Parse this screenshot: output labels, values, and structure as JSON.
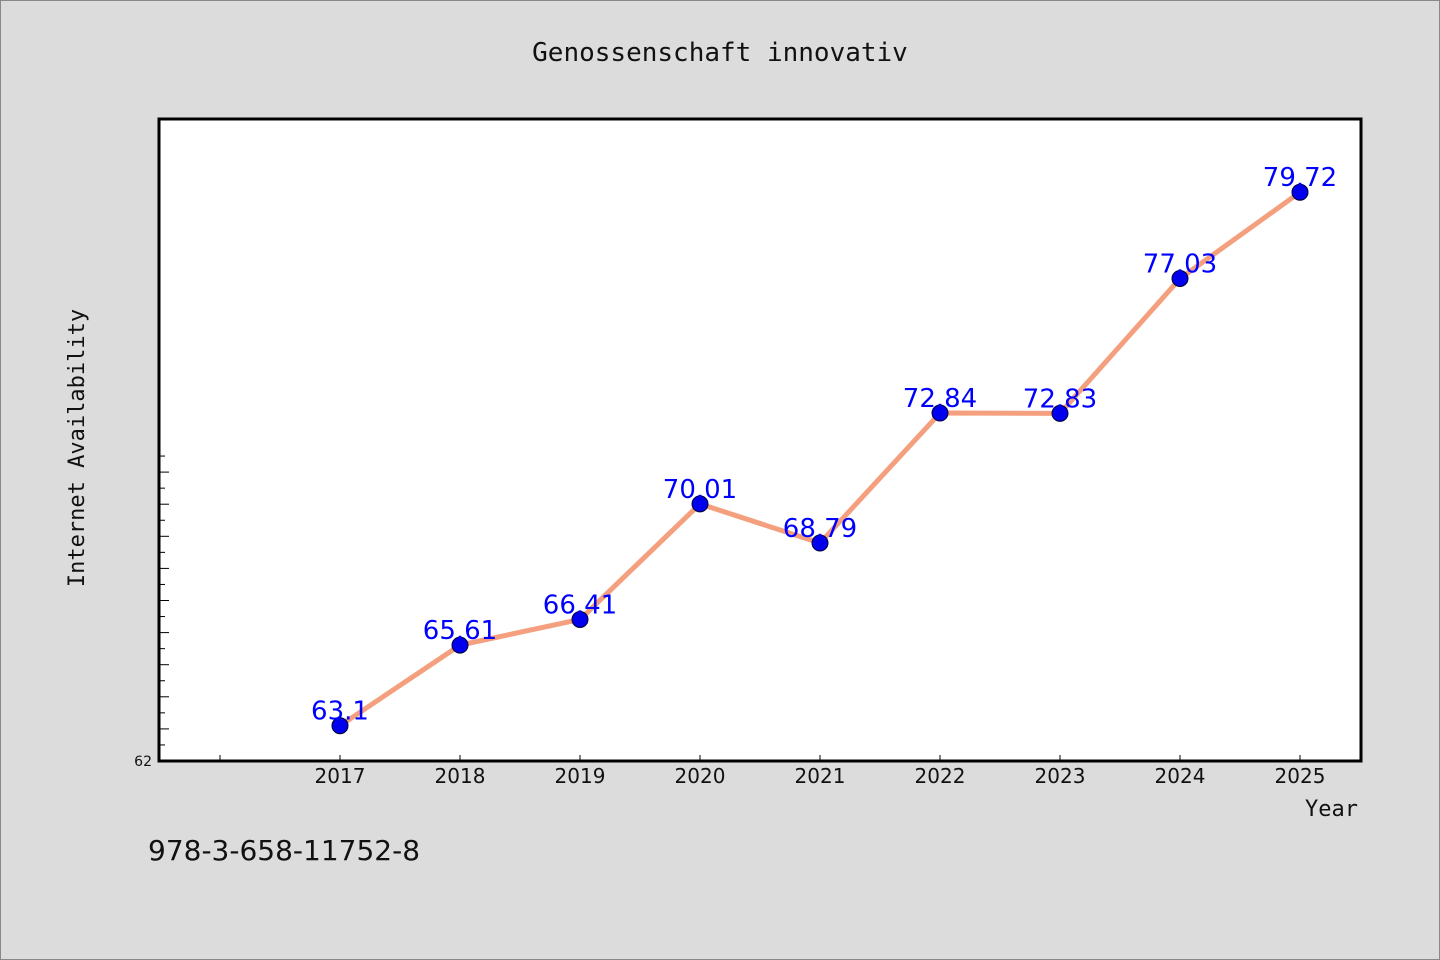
{
  "chart_data": {
    "type": "line",
    "title": "Genossenschaft innovativ",
    "xlabel": "Year",
    "ylabel": "Internet Availability",
    "categories": [
      "2017",
      "2018",
      "2019",
      "2020",
      "2021",
      "2022",
      "2023",
      "2024",
      "2025"
    ],
    "series": [
      {
        "values": [
          63.1,
          65.61,
          66.41,
          70.01,
          68.79,
          72.84,
          72.83,
          77.03,
          79.72
        ],
        "labels": [
          "63.1",
          "65.61",
          "66.41",
          "70.01",
          "68.79",
          "72.84",
          "72.83",
          "77.03",
          "79.72"
        ],
        "line_color": "#f4a07e",
        "marker_color": "#0000ee"
      }
    ],
    "ylim": [
      62,
      82
    ],
    "y_tick_labels": [
      "62"
    ],
    "grid": false,
    "legend": "none"
  },
  "footer": {
    "isbn": "978-3-658-11752-8"
  }
}
